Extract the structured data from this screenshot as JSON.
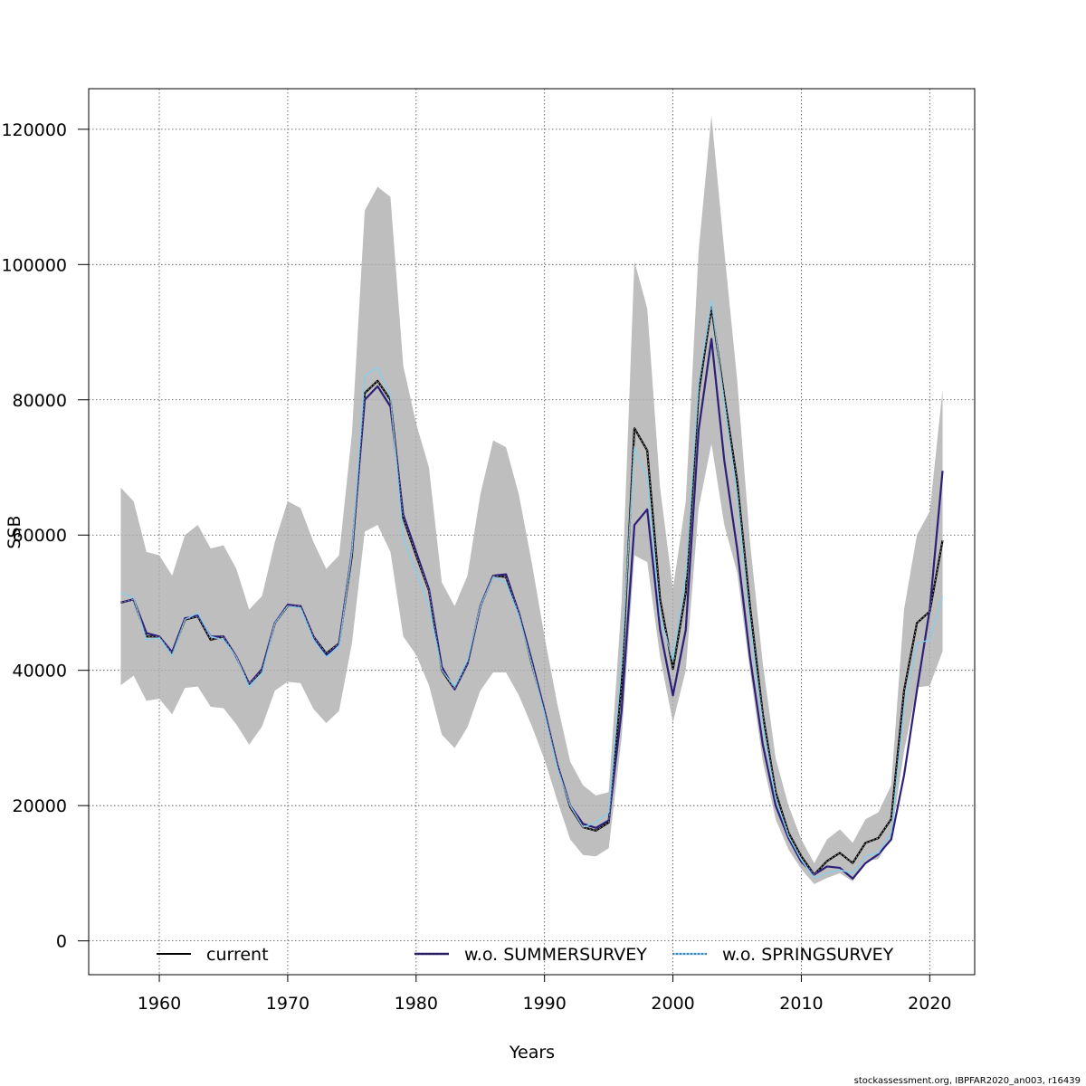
{
  "chart_data": {
    "type": "line",
    "xlabel": "Years",
    "ylabel": "SSB",
    "xlim": [
      1954.5,
      2023.5
    ],
    "ylim": [
      -5000,
      126000
    ],
    "x_ticks": [
      "1960",
      "1970",
      "1980",
      "1990",
      "2000",
      "2010",
      "2020"
    ],
    "y_ticks": [
      "0",
      "20000",
      "40000",
      "60000",
      "80000",
      "100000",
      "120000"
    ],
    "grid": true,
    "legend_position": "bottom",
    "x": [
      1957,
      1958,
      1959,
      1960,
      1961,
      1962,
      1963,
      1964,
      1965,
      1966,
      1967,
      1968,
      1969,
      1970,
      1971,
      1972,
      1973,
      1974,
      1975,
      1976,
      1977,
      1978,
      1979,
      1980,
      1981,
      1982,
      1983,
      1984,
      1985,
      1986,
      1987,
      1988,
      1989,
      1990,
      1991,
      1992,
      1993,
      1994,
      1995,
      1996,
      1997,
      1998,
      1999,
      2000,
      2001,
      2002,
      2003,
      2004,
      2005,
      2006,
      2007,
      2008,
      2009,
      2010,
      2011,
      2012,
      2013,
      2014,
      2015,
      2016,
      2017,
      2018,
      2019,
      2020,
      2021
    ],
    "confidence_band": {
      "color": "#bebebe",
      "upper": [
        67000,
        65000,
        57500,
        57000,
        54000,
        60000,
        61500,
        58000,
        58500,
        55000,
        49000,
        51000,
        59000,
        65000,
        64000,
        59000,
        55000,
        57000,
        75000,
        108000,
        111500,
        110000,
        85000,
        76500,
        70000,
        53000,
        49500,
        54000,
        66000,
        74000,
        73000,
        66000,
        56000,
        45000,
        35000,
        26500,
        23000,
        21500,
        22000,
        50000,
        100500,
        93500,
        67000,
        52000,
        65000,
        102000,
        122000,
        102000,
        83000,
        59000,
        41000,
        27000,
        20000,
        15000,
        11500,
        15000,
        16500,
        14500,
        18000,
        19000,
        23000,
        49000,
        60000,
        63500,
        81500
      ],
      "lower": [
        37800,
        39200,
        35500,
        35800,
        33500,
        37400,
        37600,
        34600,
        34400,
        32000,
        29000,
        31700,
        37000,
        38300,
        38100,
        34300,
        32200,
        34000,
        44000,
        60500,
        61500,
        57500,
        45000,
        42300,
        37800,
        30500,
        28500,
        31600,
        37000,
        39700,
        39700,
        36300,
        31800,
        26800,
        20700,
        15000,
        12700,
        12500,
        13700,
        30000,
        57000,
        56000,
        42000,
        32300,
        40000,
        64000,
        73500,
        61500,
        54500,
        40000,
        26500,
        18000,
        13500,
        10600,
        8400,
        9300,
        10000,
        8800,
        11800,
        12100,
        15300,
        28000,
        37500,
        37700,
        42800
      ]
    },
    "series": [
      {
        "name": "current",
        "color": "#000000",
        "values": [
          50000,
          50500,
          45000,
          45000,
          42500,
          47500,
          48000,
          44500,
          45000,
          42000,
          38000,
          40000,
          47000,
          49500,
          49500,
          45000,
          42500,
          44000,
          57000,
          81000,
          82800,
          80000,
          62500,
          57000,
          51800,
          40000,
          37200,
          41000,
          49500,
          54000,
          53800,
          48500,
          41000,
          34000,
          26000,
          19800,
          16800,
          16300,
          17500,
          38000,
          75800,
          72500,
          50500,
          40200,
          51500,
          81000,
          93700,
          80500,
          68000,
          49500,
          33500,
          22000,
          16000,
          12500,
          9800,
          11800,
          13000,
          11500,
          14500,
          15200,
          18000,
          37000,
          47000,
          48700,
          59200
        ]
      },
      {
        "name": "w.o. SUMMERSURVEY",
        "color": "#2b1f7a",
        "values": [
          50000,
          50500,
          45500,
          45000,
          42700,
          47700,
          48100,
          45000,
          45000,
          42000,
          38000,
          40200,
          47000,
          49700,
          49500,
          45000,
          42200,
          44000,
          57500,
          80000,
          82000,
          79000,
          63000,
          57500,
          52000,
          40500,
          37200,
          41000,
          49500,
          54000,
          54200,
          48500,
          41500,
          34000,
          26000,
          20000,
          17300,
          16700,
          17800,
          34000,
          61500,
          63800,
          46000,
          36300,
          46000,
          75500,
          89000,
          71000,
          58000,
          42000,
          29000,
          20000,
          15200,
          11700,
          9800,
          11000,
          10800,
          9200,
          11500,
          12800,
          15000,
          24500,
          37000,
          49000,
          69500
        ]
      },
      {
        "name": "w.o. SPRINGSURVEY",
        "color": "#87ceeb",
        "values": [
          51500,
          50700,
          44500,
          44800,
          42200,
          47500,
          48500,
          45000,
          44500,
          42000,
          37500,
          39500,
          47000,
          49500,
          49200,
          44500,
          42000,
          43500,
          57500,
          83500,
          84800,
          80500,
          59500,
          54500,
          49500,
          40000,
          37600,
          41500,
          49500,
          53800,
          53000,
          48000,
          41000,
          33500,
          25500,
          20000,
          16800,
          17500,
          19000,
          41000,
          73000,
          68500,
          48000,
          41500,
          54000,
          82500,
          94700,
          79500,
          66000,
          47000,
          32000,
          21000,
          15500,
          12000,
          9300,
          10000,
          10500,
          10000,
          12500,
          13000,
          16000,
          34500,
          44000,
          44500,
          51000
        ]
      }
    ]
  },
  "footer": "stockassessment.org, IBPFAR2020_an003, r16439"
}
